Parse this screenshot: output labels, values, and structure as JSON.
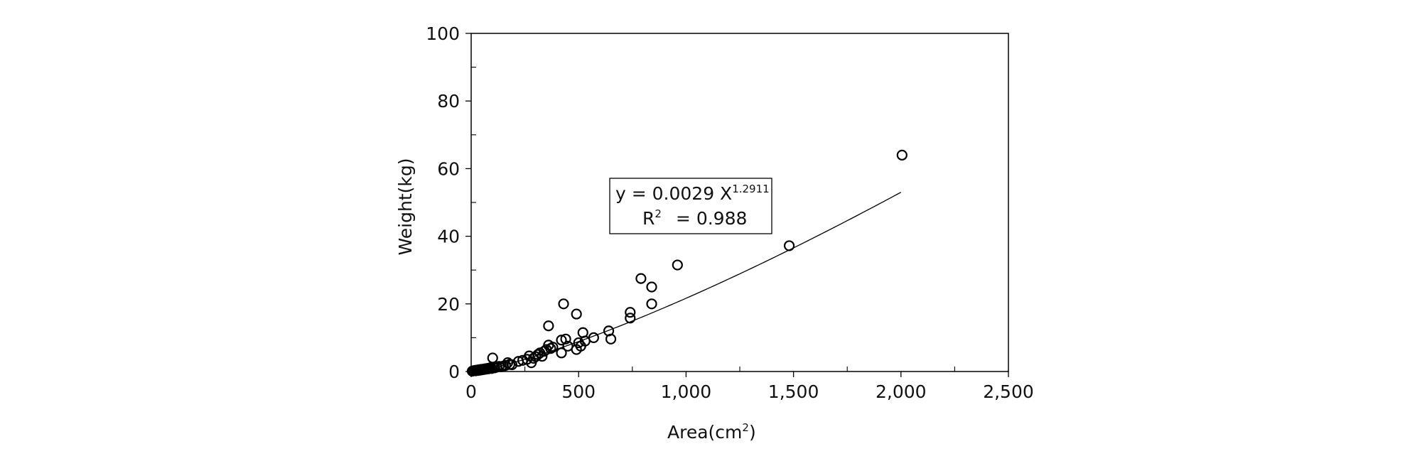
{
  "chart_data": {
    "type": "scatter",
    "xlabel": "Area(cm",
    "xlabel_sup": "2",
    "xlabel_suffix": ")",
    "ylabel": "Weight(kg)",
    "xlim": [
      0,
      2500
    ],
    "ylim": [
      0,
      100
    ],
    "x_ticks": [
      0,
      500,
      1000,
      1500,
      2000,
      2500
    ],
    "x_tick_labels": [
      "0",
      "500",
      "1,000",
      "1,500",
      "2,000",
      "2,500"
    ],
    "y_ticks": [
      0,
      20,
      40,
      60,
      80,
      100
    ],
    "y_tick_labels": [
      "0",
      "20",
      "40",
      "60",
      "80",
      "100"
    ],
    "grid": false,
    "points": [
      {
        "x": 5,
        "y": 0.1
      },
      {
        "x": 10,
        "y": 0.2
      },
      {
        "x": 15,
        "y": 0.3
      },
      {
        "x": 20,
        "y": 0.2
      },
      {
        "x": 25,
        "y": 0.4
      },
      {
        "x": 30,
        "y": 0.3
      },
      {
        "x": 35,
        "y": 0.5
      },
      {
        "x": 40,
        "y": 0.4
      },
      {
        "x": 45,
        "y": 0.6
      },
      {
        "x": 50,
        "y": 0.5
      },
      {
        "x": 55,
        "y": 0.7
      },
      {
        "x": 60,
        "y": 0.6
      },
      {
        "x": 65,
        "y": 0.8
      },
      {
        "x": 70,
        "y": 0.7
      },
      {
        "x": 75,
        "y": 0.9
      },
      {
        "x": 80,
        "y": 0.8
      },
      {
        "x": 85,
        "y": 1.0
      },
      {
        "x": 90,
        "y": 1.1
      },
      {
        "x": 95,
        "y": 0.9
      },
      {
        "x": 100,
        "y": 4.0
      },
      {
        "x": 105,
        "y": 1.2
      },
      {
        "x": 110,
        "y": 1.1
      },
      {
        "x": 120,
        "y": 1.3
      },
      {
        "x": 130,
        "y": 1.5
      },
      {
        "x": 140,
        "y": 1.4
      },
      {
        "x": 150,
        "y": 1.6
      },
      {
        "x": 160,
        "y": 1.8
      },
      {
        "x": 170,
        "y": 2.6
      },
      {
        "x": 180,
        "y": 2.1
      },
      {
        "x": 190,
        "y": 2.0
      },
      {
        "x": 220,
        "y": 3.0
      },
      {
        "x": 240,
        "y": 3.3
      },
      {
        "x": 260,
        "y": 3.6
      },
      {
        "x": 270,
        "y": 4.6
      },
      {
        "x": 280,
        "y": 2.6
      },
      {
        "x": 290,
        "y": 3.9
      },
      {
        "x": 300,
        "y": 4.4
      },
      {
        "x": 310,
        "y": 5.0
      },
      {
        "x": 320,
        "y": 5.5
      },
      {
        "x": 330,
        "y": 4.5
      },
      {
        "x": 340,
        "y": 6.0
      },
      {
        "x": 350,
        "y": 6.5
      },
      {
        "x": 360,
        "y": 7.8
      },
      {
        "x": 360,
        "y": 13.5
      },
      {
        "x": 370,
        "y": 6.8
      },
      {
        "x": 380,
        "y": 7.2
      },
      {
        "x": 420,
        "y": 5.5
      },
      {
        "x": 420,
        "y": 9.3
      },
      {
        "x": 430,
        "y": 20.0
      },
      {
        "x": 440,
        "y": 9.6
      },
      {
        "x": 450,
        "y": 7.5
      },
      {
        "x": 490,
        "y": 6.5
      },
      {
        "x": 490,
        "y": 17.0
      },
      {
        "x": 500,
        "y": 8.5
      },
      {
        "x": 510,
        "y": 7.5
      },
      {
        "x": 520,
        "y": 11.5
      },
      {
        "x": 530,
        "y": 9.0
      },
      {
        "x": 570,
        "y": 10.0
      },
      {
        "x": 640,
        "y": 12.0
      },
      {
        "x": 650,
        "y": 9.6
      },
      {
        "x": 740,
        "y": 17.5
      },
      {
        "x": 740,
        "y": 15.8
      },
      {
        "x": 790,
        "y": 27.5
      },
      {
        "x": 840,
        "y": 25.0
      },
      {
        "x": 840,
        "y": 20.0
      },
      {
        "x": 960,
        "y": 31.5
      },
      {
        "x": 1480,
        "y": 37.2
      },
      {
        "x": 2005,
        "y": 64.0
      }
    ],
    "trendline": {
      "type": "power",
      "coefficient": 0.0029,
      "exponent": 1.2911,
      "x_range": [
        1,
        2000
      ]
    },
    "annotation": {
      "line1_main": "y = 0.0029 X",
      "line1_sup": "1.2911",
      "line2_main": "R",
      "line2_sup": "2",
      "line2_rest": "= 0.988"
    }
  }
}
